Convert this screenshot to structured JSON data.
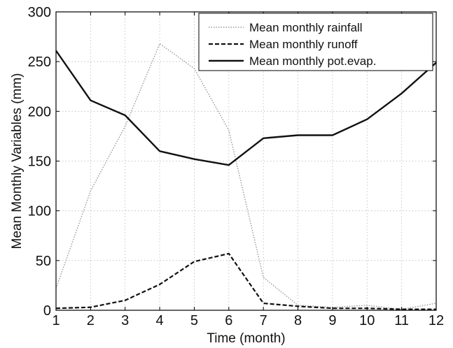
{
  "chart_data": {
    "type": "line",
    "xlabel": "Time (month)",
    "ylabel": "Mean Monthly Variables (mm)",
    "xlim": [
      1,
      12
    ],
    "ylim": [
      0,
      300
    ],
    "x_ticks": [
      "1",
      "2",
      "3",
      "4",
      "5",
      "6",
      "7",
      "8",
      "9",
      "10",
      "11",
      "12"
    ],
    "y_ticks": [
      "0",
      "50",
      "100",
      "150",
      "200",
      "250",
      "300"
    ],
    "grid": true,
    "legend_position": "top-right",
    "x": [
      1,
      2,
      3,
      4,
      5,
      6,
      7,
      8,
      9,
      10,
      11,
      12
    ],
    "series": [
      {
        "name": "Mean monthly rainfall",
        "style": "dotted",
        "color": "#999999",
        "values": [
          22,
          120,
          185,
          268,
          243,
          181,
          33,
          5,
          3,
          5,
          1,
          7
        ]
      },
      {
        "name": "Mean monthly runoff",
        "style": "dashed",
        "color": "#111111",
        "values": [
          2,
          3,
          10,
          26,
          49,
          57,
          7,
          4,
          2,
          2,
          1,
          1
        ]
      },
      {
        "name": "Mean monthly pot.evap.",
        "style": "solid",
        "color": "#111111",
        "values": [
          261,
          211,
          196,
          160,
          152,
          146,
          173,
          176,
          176,
          192,
          218,
          249
        ]
      }
    ]
  }
}
